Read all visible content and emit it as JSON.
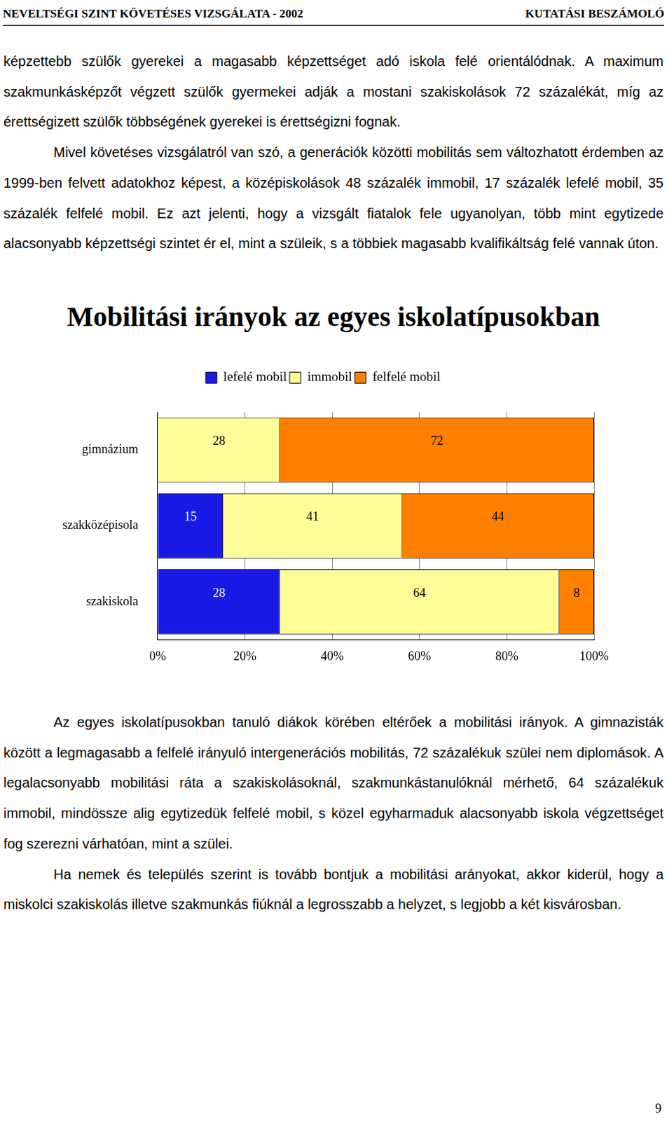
{
  "header": {
    "left": "NEVELTSÉGI SZINT KÖVETÉSES VIZSGÁLATA - 2002",
    "right": "KUTATÁSI BESZÁMOLÓ"
  },
  "paragraphs_before": [
    "képzettebb szülők gyerekei a magasabb képzettséget adó iskola felé orientálódnak. A maximum szakmunkásképzőt végzett szülők gyermekei adják a mostani szakiskolások 72 százalékát, míg az érettségizett szülők többségének gyerekei is érettségizni fognak.",
    "Mivel követéses vizsgálatról van szó, a generációk közötti mobilitás sem változhatott érdemben az 1999-ben felvett adatokhoz képest, a középiskolások 48 százalék immobil, 17 százalék lefelé mobil, 35 százalék felfelé mobil. Ez azt jelenti, hogy a vizsgált fiatalok fele ugyanolyan, több mint egytizede alacsonyabb képzettségi szintet ér el, mint a szüleik, s a többiek magasabb kvalifikáltság felé vannak úton."
  ],
  "chart_data": {
    "type": "bar",
    "orientation": "horizontal",
    "stacked": true,
    "title": "Mobilitási irányok az egyes iskolatípusokban",
    "categories": [
      "gimnázium",
      "szakközépisola",
      "szakiskola"
    ],
    "series": [
      {
        "name": "lefelé mobil",
        "color": "#1a1ae6",
        "values": [
          null,
          15,
          28
        ]
      },
      {
        "name": "immobil",
        "color": "#ffff99",
        "values": [
          28,
          41,
          64
        ]
      },
      {
        "name": "felfelé mobil",
        "color": "#ff8000",
        "values": [
          72,
          44,
          8
        ]
      }
    ],
    "xlim": [
      0,
      100
    ],
    "xticks": [
      {
        "value": 0,
        "label": "0%"
      },
      {
        "value": 20,
        "label": "20%"
      },
      {
        "value": 40,
        "label": "40%"
      },
      {
        "value": 60,
        "label": "60%"
      },
      {
        "value": 80,
        "label": "80%"
      },
      {
        "value": 100,
        "label": "100%"
      }
    ],
    "grid": true,
    "legend": "top",
    "data_labels": true
  },
  "paragraphs_after": [
    "Az egyes iskolatípusokban tanuló diákok körében eltérőek a mobilitási irányok. A gimnazisták között a legmagasabb a felfelé irányuló intergenerációs mobilitás, 72 százalékuk szülei nem diplomások. A legalacsonyabb mobilitási ráta a szakiskolásoknál, szakmunkástanulóknál mérhető, 64 százalékuk immobil, mindössze alig egytizedük felfelé mobil, s közel egyharmaduk alacsonyabb iskola végzettséget fog szerezni várhatóan, mint a szülei.",
    "Ha nemek és település szerint is tovább bontjuk a mobilitási arányokat, akkor kiderül, hogy a miskolci szakiskolás illetve szakmunkás fiúknál a legrosszabb a helyzet, s legjobb a két kisvárosban."
  ],
  "page_number": "9"
}
